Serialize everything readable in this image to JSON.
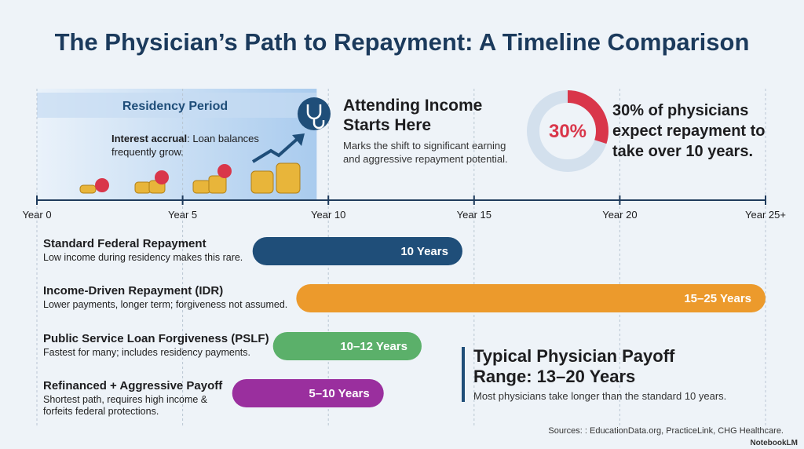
{
  "title": "The Physician’s Path to Repayment: A Timeline Comparison",
  "chart_data": {
    "type": "timeline",
    "xlim": [
      0,
      25
    ],
    "xticks": [
      {
        "value": 0,
        "label": "Year 0"
      },
      {
        "value": 5,
        "label": "Year 5"
      },
      {
        "value": 10,
        "label": "Year 10"
      },
      {
        "value": 15,
        "label": "Year 15"
      },
      {
        "value": 20,
        "label": "Year 20"
      },
      {
        "value": 25,
        "label": "Year 25+"
      }
    ],
    "residency": {
      "label": "Residency Period",
      "range": [
        0,
        9.6
      ],
      "note_bold": "Interest accrual",
      "note": ": Loan balances frequently grow."
    },
    "attending": {
      "title": "Attending Income Starts Here",
      "text": "Marks the shift to significant earning and aggressive repayment potential."
    },
    "stat": {
      "value": 30,
      "label": "30%",
      "text": "30% of physicians expect repayment to take over 10 years.",
      "color": "#d9364a"
    },
    "series": [
      {
        "name": "Standard Federal Repayment",
        "description": "Low income during residency makes this rare.",
        "start": 7.4,
        "end": 14.6,
        "label": "10 Years",
        "color": "#1f4e79"
      },
      {
        "name": "Income-Driven Repayment (IDR)",
        "description": "Lower payments, longer term; forgiveness not assumed.",
        "start": 8.9,
        "end": 25,
        "label": "15–25 Years",
        "color": "#ec9a2c"
      },
      {
        "name": "Public Service Loan Forgiveness (PSLF)",
        "description": "Fastest for many; includes residency payments.",
        "start": 8.1,
        "end": 13.2,
        "label": "10–12 Years",
        "color": "#5bb06a"
      },
      {
        "name": "Refinanced + Aggressive Payoff",
        "description": "Shortest path, requires high income & forfeits federal protections.",
        "start": 6.7,
        "end": 11.9,
        "label": "5–10 Years",
        "color": "#9a2f9e"
      }
    ],
    "callout": {
      "title": "Typical Physician Payoff Range: 13–20 Years",
      "text": "Most physicians take longer than the standard 10 years."
    },
    "source": "Sources: : EducationData.org, PracticeLink, CHG Healthcare.",
    "brand": "NotebookLM"
  }
}
